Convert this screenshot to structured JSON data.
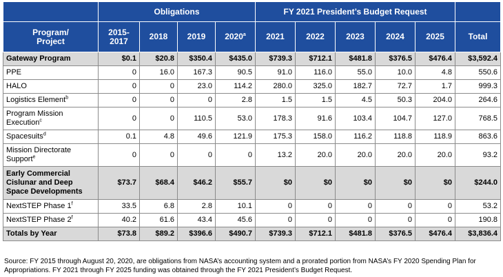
{
  "header": {
    "group_obligations": "Obligations",
    "group_budget": "FY 2021 President’s Budget Request",
    "program_col": "Program/\nProject",
    "years": [
      "2015-\n2017",
      "2018",
      "2019",
      "2020",
      "2021",
      "2022",
      "2023",
      "2024",
      "2025",
      "Total"
    ],
    "year_2020_sup": "a"
  },
  "rows": [
    {
      "label": "Gateway Program",
      "sup": "",
      "style": "shaded",
      "values": [
        "$0.1",
        "$20.8",
        "$350.4",
        "$435.0",
        "$739.3",
        "$712.1",
        "$481.8",
        "$376.5",
        "$476.4",
        "$3,592.4"
      ]
    },
    {
      "label": "PPE",
      "sup": "",
      "style": "",
      "values": [
        "0",
        "16.0",
        "167.3",
        "90.5",
        "91.0",
        "116.0",
        "55.0",
        "10.0",
        "4.8",
        "550.6"
      ]
    },
    {
      "label": "HALO",
      "sup": "",
      "style": "",
      "values": [
        "0",
        "0",
        "23.0",
        "114.2",
        "280.0",
        "325.0",
        "182.7",
        "72.7",
        "1.7",
        "999.3"
      ]
    },
    {
      "label": "Logistics Element",
      "sup": "b",
      "style": "",
      "values": [
        "0",
        "0",
        "0",
        "2.8",
        "1.5",
        "1.5",
        "4.5",
        "50.3",
        "204.0",
        "264.6"
      ]
    },
    {
      "label": "Program Mission\nExecution",
      "sup": "c",
      "style": "two",
      "values": [
        "0",
        "0",
        "110.5",
        "53.0",
        "178.3",
        "91.6",
        "103.4",
        "104.7",
        "127.0",
        "768.5"
      ]
    },
    {
      "label": "Spacesuits",
      "sup": "d",
      "style": "",
      "values": [
        "0.1",
        "4.8",
        "49.6",
        "121.9",
        "175.3",
        "158.0",
        "116.2",
        "118.8",
        "118.9",
        "863.6"
      ]
    },
    {
      "label": "Mission Directorate\nSupport",
      "sup": "e",
      "style": "two",
      "values": [
        "0",
        "0",
        "0",
        "0",
        "13.2",
        "20.0",
        "20.0",
        "20.0",
        "20.0",
        "93.2"
      ]
    },
    {
      "label": "Early Commercial\nCislunar and Deep\nSpace Developments",
      "sup": "",
      "style": "shaded three",
      "values": [
        "$73.7",
        "$68.4",
        "$46.2",
        "$55.7",
        "$0",
        "$0",
        "$0",
        "$0",
        "$0",
        "$244.0"
      ]
    },
    {
      "label": "NextSTEP Phase 1",
      "sup": "f",
      "style": "",
      "values": [
        "33.5",
        "6.8",
        "2.8",
        "10.1",
        "0",
        "0",
        "0",
        "0",
        "0",
        "53.2"
      ]
    },
    {
      "label": "NextSTEP Phase 2",
      "sup": "f",
      "style": "",
      "values": [
        "40.2",
        "61.6",
        "43.4",
        "45.6",
        "0",
        "0",
        "0",
        "0",
        "0",
        "190.8"
      ]
    },
    {
      "label": "Totals by Year",
      "sup": "",
      "style": "shaded",
      "values": [
        "$73.8",
        "$89.2",
        "$396.6",
        "$490.7",
        "$739.3",
        "$712.1",
        "$481.8",
        "$376.5",
        "$476.4",
        "$3,836.4"
      ]
    }
  ],
  "source": "Source:  FY 2015 through August 20, 2020, are obligations from NASA’s accounting system and a prorated portion from NASA’s FY 2020 Spending Plan for Appropriations.  FY 2021 through FY 2025 funding was obtained through the FY 2021 President’s Budget Request."
}
